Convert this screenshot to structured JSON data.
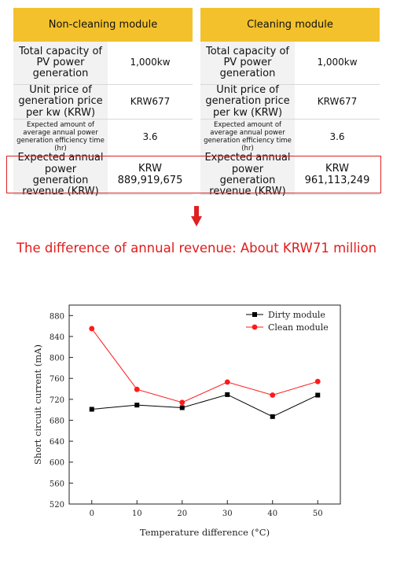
{
  "table": {
    "columns": [
      {
        "header": "Non-cleaning module",
        "rows": [
          {
            "label": "Total capacity of PV power generation",
            "value": "1,000kw"
          },
          {
            "label": "Unit price of generation price per kw (KRW)",
            "value": "KRW677"
          },
          {
            "label": "Expected amount of average annual power generation efficiency time (hr)",
            "value": "3.6"
          },
          {
            "label": "Expected annual power generation revenue (KRW)",
            "value": "KRW 889,919,675"
          }
        ]
      },
      {
        "header": "Cleaning module",
        "rows": [
          {
            "label": "Total capacity of PV power generation",
            "value": "1,000kw"
          },
          {
            "label": "Unit price of generation price per kw (KRW)",
            "value": "KRW677"
          },
          {
            "label": "Expected amount of average annual power generation efficiency time (hr)",
            "value": "3.6"
          },
          {
            "label": "Expected annual power generation revenue (KRW)",
            "value": "KRW 961,113,249"
          }
        ]
      }
    ]
  },
  "caption": "The difference of annual revenue: About KRW71 million",
  "colors": {
    "header": "#f3c12b",
    "accent_red": "#e02020",
    "dirty": "#000000",
    "clean": "#ff1a1a"
  },
  "chart_data": {
    "type": "line",
    "x": [
      0,
      10,
      20,
      30,
      40,
      50
    ],
    "series": [
      {
        "name": "Dirty module",
        "values": [
          701,
          709,
          704,
          729,
          687,
          728
        ],
        "color": "#000000",
        "marker": "square"
      },
      {
        "name": "Clean module",
        "values": [
          855,
          739,
          714,
          753,
          728,
          754
        ],
        "color": "#ff1a1a",
        "marker": "circle"
      }
    ],
    "xlabel": "Temperature difference (°C)",
    "ylabel": "Short circuit current (mA)",
    "xlim": [
      -5,
      55
    ],
    "ylim": [
      520,
      900
    ],
    "xticks": [
      0,
      10,
      20,
      30,
      40,
      50
    ],
    "yticks": [
      520,
      560,
      600,
      640,
      680,
      720,
      760,
      800,
      840,
      880
    ],
    "legend": "top-right",
    "grid": false
  }
}
